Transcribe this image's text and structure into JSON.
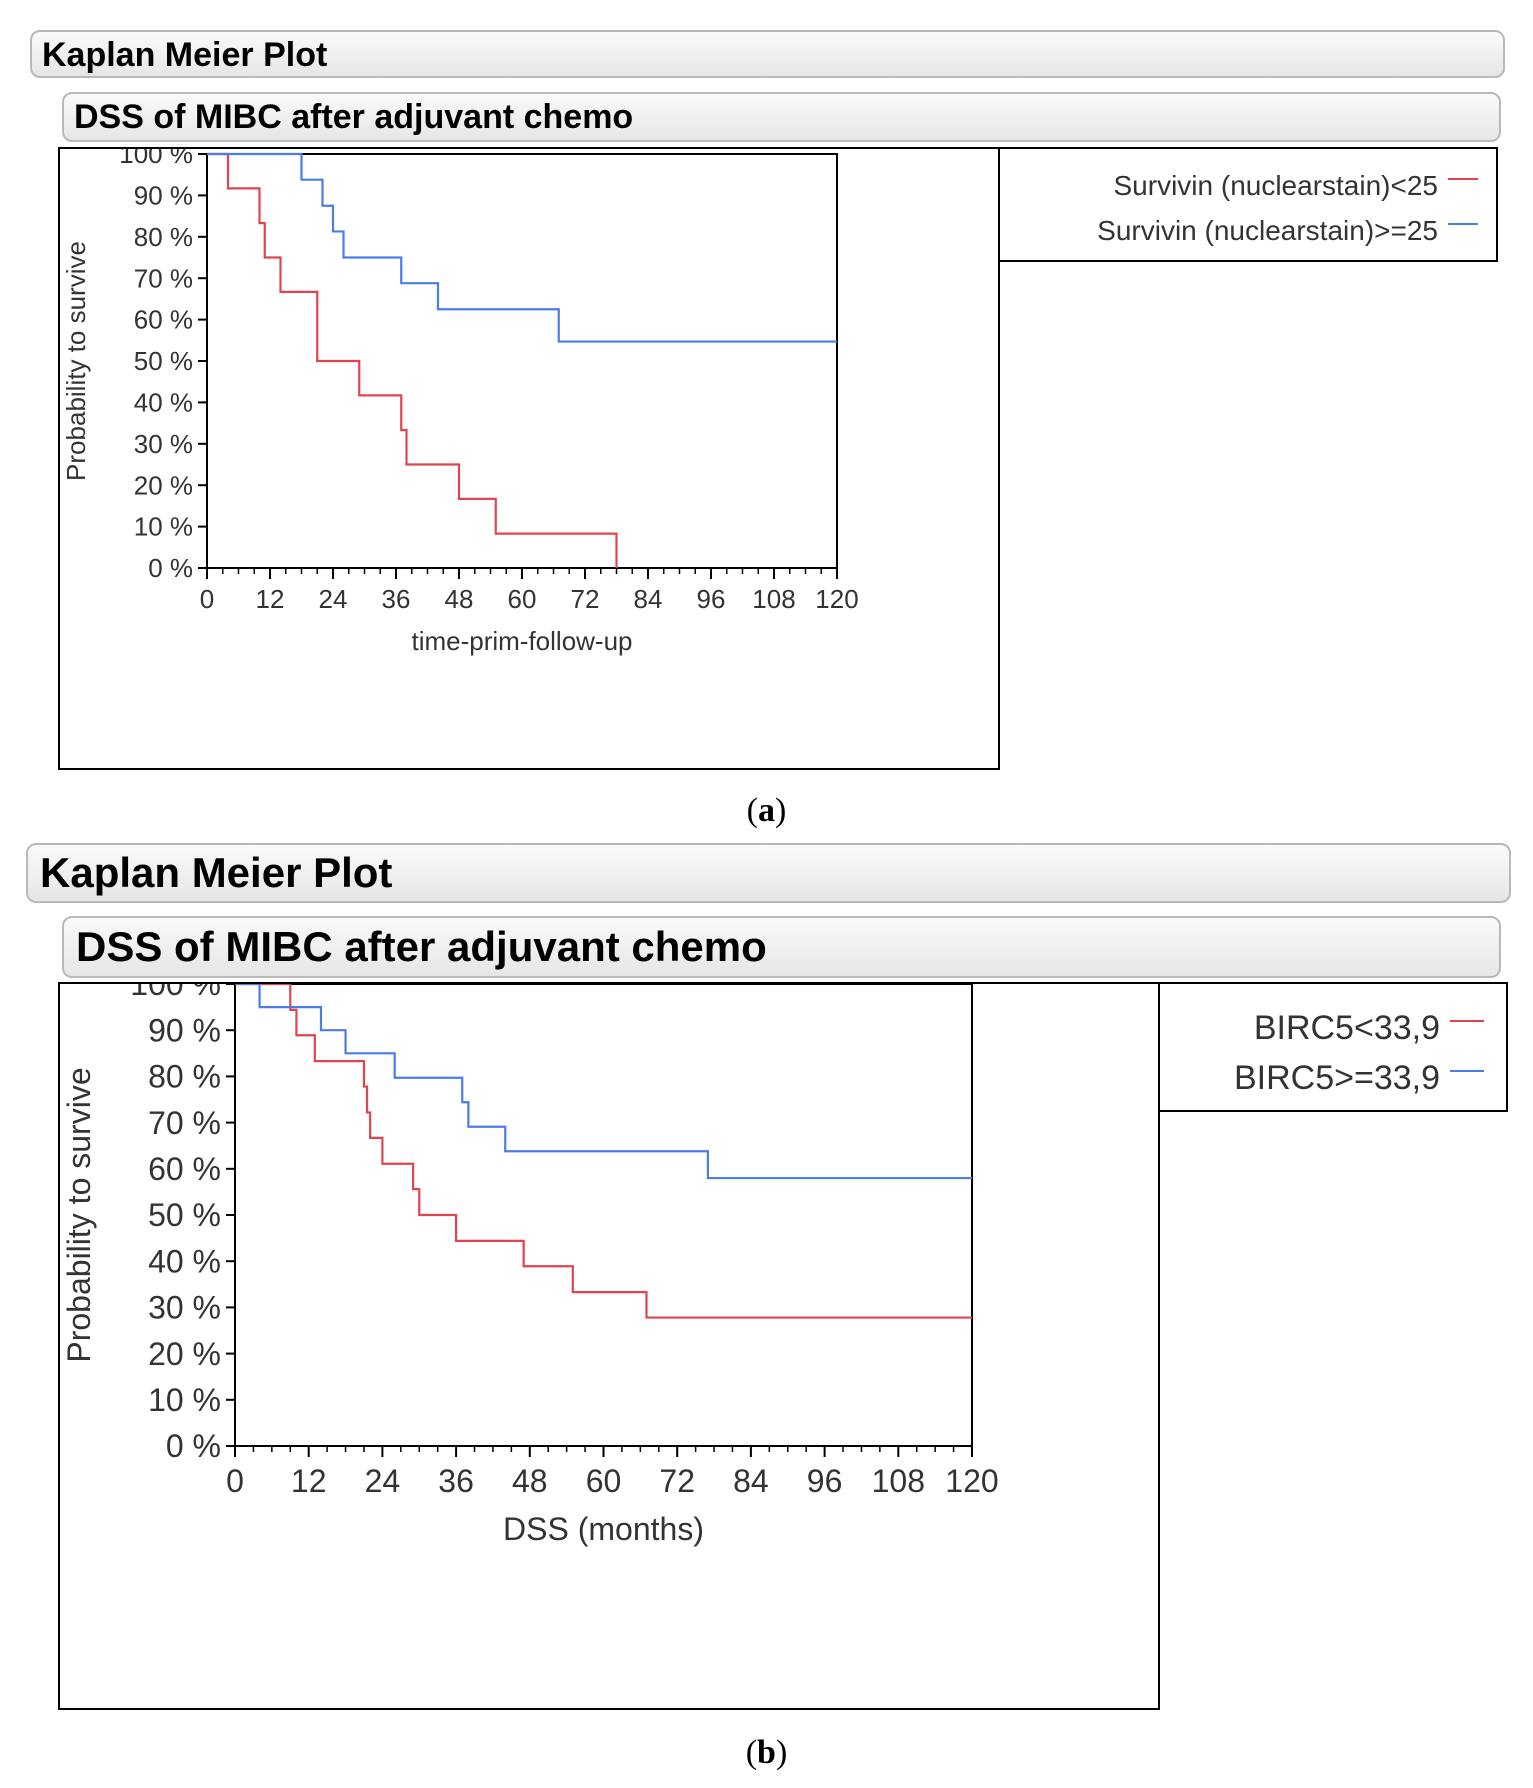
{
  "panels": [
    {
      "id": "a",
      "outer_title": "Kaplan Meier Plot",
      "inner_title": "DSS of MIBC after adjuvant chemo",
      "caption": "a",
      "legend": [
        {
          "label": "Survivin (nuclearstain)<25",
          "color": "#e0454f"
        },
        {
          "label": "Survivin (nuclearstain)>=25",
          "color": "#4a7de8"
        }
      ]
    },
    {
      "id": "b",
      "outer_title": "Kaplan Meier Plot",
      "inner_title": "DSS of MIBC after adjuvant chemo",
      "caption": "b",
      "legend": [
        {
          "label": "BIRC5<33,9",
          "color": "#e0454f"
        },
        {
          "label": "BIRC5>=33,9",
          "color": "#4a7de8"
        }
      ]
    }
  ],
  "chart_data": [
    {
      "type": "line",
      "subtype": "kaplan-meier step",
      "title": "DSS of MIBC after adjuvant chemo",
      "xlabel": "time-prim-follow-up",
      "ylabel": "Probability to survive",
      "xlim": [
        0,
        120
      ],
      "ylim": [
        0,
        100
      ],
      "xticks": [
        "0",
        "12",
        "24",
        "36",
        "48",
        "60",
        "72",
        "84",
        "96",
        "108",
        "120"
      ],
      "yticks": [
        "0 %",
        "10 %",
        "20 %",
        "30 %",
        "40 %",
        "50 %",
        "60 %",
        "70 %",
        "80 %",
        "90 %",
        "100 %"
      ],
      "series": [
        {
          "name": "Survivin (nuclearstain)<25",
          "color": "#e0454f",
          "steps": [
            [
              0,
              100
            ],
            [
              4,
              91.7
            ],
            [
              10,
              83.3
            ],
            [
              11,
              75
            ],
            [
              14,
              66.7
            ],
            [
              21,
              50
            ],
            [
              29,
              41.7
            ],
            [
              37,
              33.3
            ],
            [
              38,
              25
            ],
            [
              48,
              16.7
            ],
            [
              55,
              8.3
            ],
            [
              78,
              0
            ]
          ],
          "end": 78
        },
        {
          "name": "Survivin (nuclearstain)>=25",
          "color": "#4a7de8",
          "steps": [
            [
              0,
              100
            ],
            [
              18,
              93.8
            ],
            [
              22,
              87.5
            ],
            [
              24,
              81.3
            ],
            [
              26,
              75
            ],
            [
              37,
              68.8
            ],
            [
              44,
              62.5
            ],
            [
              67,
              54.7
            ]
          ],
          "end": 120
        }
      ]
    },
    {
      "type": "line",
      "subtype": "kaplan-meier step",
      "title": "DSS of MIBC after adjuvant chemo",
      "xlabel": "DSS (months)",
      "ylabel": "Probability to survive",
      "xlim": [
        0,
        120
      ],
      "ylim": [
        0,
        100
      ],
      "xticks": [
        "0",
        "12",
        "24",
        "36",
        "48",
        "60",
        "72",
        "84",
        "96",
        "108",
        "120"
      ],
      "yticks": [
        "0 %",
        "10 %",
        "20 %",
        "30 %",
        "40 %",
        "50 %",
        "60 %",
        "70 %",
        "80 %",
        "90 %",
        "100 %"
      ],
      "series": [
        {
          "name": "BIRC5<33,9",
          "color": "#e0454f",
          "steps": [
            [
              0,
              100
            ],
            [
              9,
              94.4
            ],
            [
              10,
              88.9
            ],
            [
              13,
              83.3
            ],
            [
              21,
              77.8
            ],
            [
              21.5,
              72.2
            ],
            [
              22,
              66.7
            ],
            [
              24,
              61.1
            ],
            [
              29,
              55.6
            ],
            [
              30,
              50
            ],
            [
              36,
              44.4
            ],
            [
              47,
              38.9
            ],
            [
              55,
              33.3
            ],
            [
              67,
              27.8
            ]
          ],
          "end": 120
        },
        {
          "name": "BIRC5>=33,9",
          "color": "#4a7de8",
          "steps": [
            [
              0,
              100
            ],
            [
              4,
              95
            ],
            [
              14,
              90
            ],
            [
              18,
              85
            ],
            [
              26,
              79.7
            ],
            [
              37,
              74.4
            ],
            [
              38,
              69.1
            ],
            [
              44,
              63.8
            ],
            [
              77,
              58
            ]
          ],
          "end": 120
        }
      ]
    }
  ]
}
